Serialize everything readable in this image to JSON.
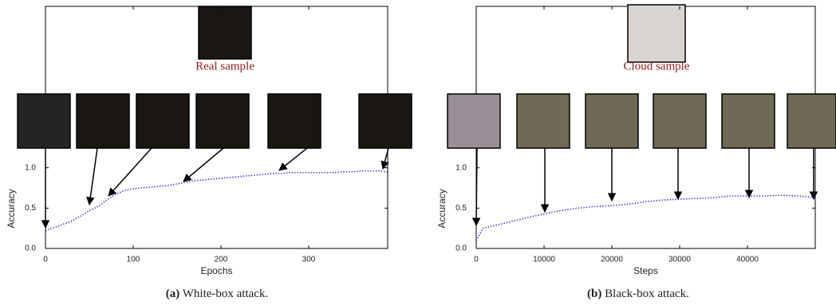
{
  "chart_data": [
    {
      "type": "line",
      "annotation": "Real sample",
      "x_label": "Epochs",
      "y_label": "Accuracy",
      "caption": {
        "label": "(a)",
        "text": "White-box attack."
      },
      "x": [
        0,
        10,
        20,
        30,
        40,
        50,
        60,
        70,
        80,
        90,
        100,
        110,
        120,
        130,
        140,
        150,
        160,
        170,
        180,
        190,
        200,
        210,
        220,
        230,
        240,
        250,
        260,
        270,
        280,
        290,
        300,
        310,
        320,
        330,
        340,
        350,
        360,
        370,
        380,
        390
      ],
      "series": [
        {
          "color": "#1a1acc",
          "values": [
            0.22,
            0.26,
            0.3,
            0.34,
            0.4,
            0.47,
            0.52,
            0.6,
            0.67,
            0.72,
            0.74,
            0.75,
            0.76,
            0.77,
            0.78,
            0.8,
            0.82,
            0.84,
            0.85,
            0.86,
            0.87,
            0.88,
            0.89,
            0.9,
            0.91,
            0.92,
            0.93,
            0.93,
            0.94,
            0.94,
            0.94,
            0.94,
            0.94,
            0.94,
            0.95,
            0.95,
            0.96,
            0.96,
            0.96,
            0.95
          ]
        }
      ],
      "xlim": [
        0,
        390
      ],
      "xticks": [
        0,
        100,
        200,
        300
      ],
      "ylim": [
        0,
        3
      ],
      "yticks": [
        {
          "value": 0,
          "label": "0.0"
        },
        {
          "value": 0.5,
          "label": "0.5"
        },
        {
          "value": 1,
          "label": "1.0"
        }
      ]
    },
    {
      "type": "line",
      "annotation": "Cloud sample",
      "x_label": "Steps",
      "y_label": "Accuracy",
      "caption": {
        "label": "(b)",
        "text": "Black-box attack."
      },
      "x": [
        0,
        1000,
        2500,
        5000,
        7500,
        10000,
        12500,
        15000,
        17500,
        20000,
        22500,
        25000,
        27500,
        30000,
        32500,
        35000,
        37500,
        40000,
        42500,
        45000,
        47500,
        50000
      ],
      "series": [
        {
          "color": "#1a1acc",
          "values": [
            0.1,
            0.25,
            0.28,
            0.33,
            0.38,
            0.43,
            0.47,
            0.5,
            0.52,
            0.53,
            0.55,
            0.58,
            0.6,
            0.61,
            0.62,
            0.63,
            0.65,
            0.65,
            0.65,
            0.66,
            0.65,
            0.63
          ]
        }
      ],
      "xlim": [
        0,
        50000
      ],
      "xticks": [
        0,
        10000,
        20000,
        30000,
        40000
      ],
      "ylim": [
        0,
        3
      ],
      "yticks": [
        {
          "value": 0,
          "label": "0.0"
        },
        {
          "value": 0.5,
          "label": "0.5"
        },
        {
          "value": 1,
          "label": "1.0"
        }
      ]
    }
  ]
}
